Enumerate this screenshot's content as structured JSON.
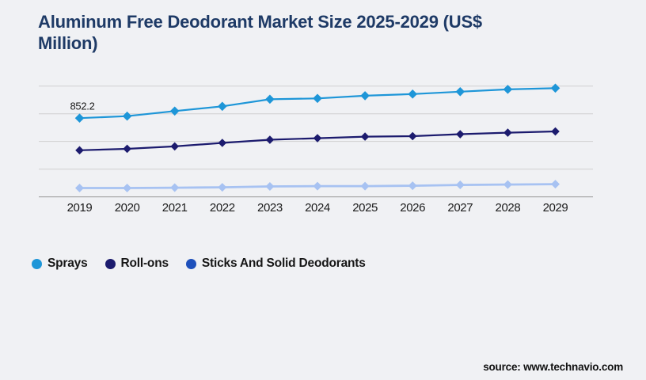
{
  "page": {
    "background": "#f0f1f4"
  },
  "title": {
    "line1": "Aluminum Free Deodorant Market Size 2025-2029 (US$",
    "line2": "Million)",
    "color": "#1e3a66"
  },
  "source": {
    "label": "source: www.technavio.com"
  },
  "chart_data": {
    "type": "line",
    "title": "Aluminum Free Deodorant Market Size 2025-2029 (US$ Million)",
    "x": [
      2019,
      2020,
      2021,
      2022,
      2023,
      2024,
      2025,
      2026,
      2027,
      2028,
      2029
    ],
    "series": [
      {
        "name": "Sprays",
        "color": "#1e96d8",
        "legend_color": "#1e96d8",
        "marker": "diamond",
        "values": [
          852.2,
          874,
          929,
          980,
          1057,
          1066,
          1095,
          1113,
          1139,
          1164,
          1177
        ]
      },
      {
        "name": "Roll-ons",
        "color": "#1c1b6e",
        "legend_color": "#1c1b6e",
        "marker": "diamond",
        "values": [
          504,
          520,
          546,
          584,
          618,
          635,
          652,
          657,
          678,
          695,
          708
        ]
      },
      {
        "name": "Sticks And Solid Deodorants",
        "color": "#a7c2f2",
        "legend_color": "#1e50bb",
        "marker": "diamond",
        "values": [
          95,
          95,
          99,
          103,
          112,
          116,
          116,
          120,
          129,
          133,
          137
        ]
      }
    ],
    "annotations": [
      {
        "series": "Sprays",
        "x": 2019,
        "text": "852.2"
      }
    ],
    "ylim": [
      0,
      1330
    ],
    "gridline_step": 300,
    "grid": "horizontal",
    "y_axis_labels_visible": false,
    "x_axis_labels_visible": true,
    "legend_position": "bottom-left",
    "gridline_color": "#d0d0d0",
    "axis_line_color": "#a9a9a9",
    "annotation_color": "#1a1a1a"
  }
}
